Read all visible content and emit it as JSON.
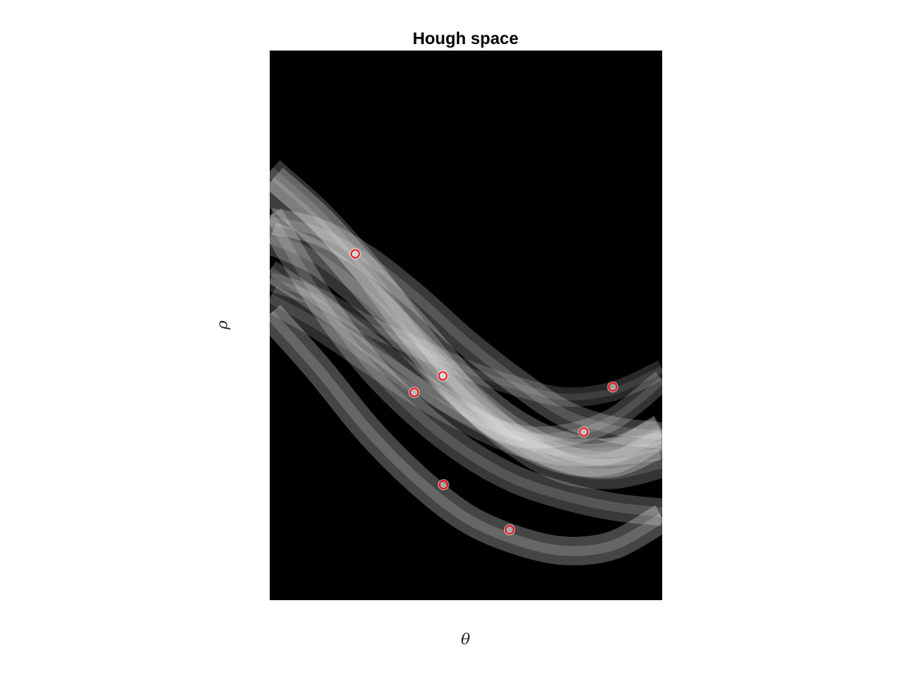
{
  "chart_data": {
    "type": "heatmap",
    "title": "Hough space",
    "xlabel": "θ",
    "ylabel": "ρ",
    "xlim": [
      0,
      1
    ],
    "ylim": [
      0,
      1
    ],
    "colormap": "gray",
    "background_color": "#000000",
    "marker_color": "#ff0000",
    "grid": false,
    "ticks_visible": false,
    "peaks": [
      {
        "x": 0.218,
        "y": 0.63
      },
      {
        "x": 0.441,
        "y": 0.408
      },
      {
        "x": 0.368,
        "y": 0.378
      },
      {
        "x": 0.874,
        "y": 0.388
      },
      {
        "x": 0.8,
        "y": 0.306
      },
      {
        "x": 0.443,
        "y": 0.21
      },
      {
        "x": 0.611,
        "y": 0.128
      }
    ],
    "curves": [
      {
        "y": [
          0.76,
          0.68,
          0.58,
          0.48,
          0.38,
          0.31,
          0.27,
          0.26,
          0.3
        ],
        "width": 0.072,
        "intensity": 0.55
      },
      {
        "y": [
          0.66,
          0.62,
          0.55,
          0.46,
          0.37,
          0.3,
          0.26,
          0.26,
          0.31
        ],
        "width": 0.06,
        "intensity": 0.45
      },
      {
        "y": [
          0.52,
          0.42,
          0.31,
          0.22,
          0.15,
          0.11,
          0.09,
          0.1,
          0.15
        ],
        "width": 0.052,
        "intensity": 0.6
      },
      {
        "y": [
          0.69,
          0.67,
          0.62,
          0.55,
          0.47,
          0.4,
          0.34,
          0.31,
          0.3
        ],
        "width": 0.048,
        "intensity": 0.5
      },
      {
        "y": [
          0.78,
          0.7,
          0.6,
          0.48,
          0.37,
          0.29,
          0.24,
          0.23,
          0.25
        ],
        "width": 0.055,
        "intensity": 0.45
      },
      {
        "y": [
          0.55,
          0.5,
          0.44,
          0.38,
          0.33,
          0.29,
          0.27,
          0.27,
          0.28
        ],
        "width": 0.05,
        "intensity": 0.4
      },
      {
        "y": [
          0.7,
          0.55,
          0.43,
          0.34,
          0.27,
          0.22,
          0.19,
          0.17,
          0.16
        ],
        "width": 0.05,
        "intensity": 0.5
      },
      {
        "y": [
          0.58,
          0.55,
          0.5,
          0.46,
          0.42,
          0.39,
          0.37,
          0.38,
          0.42
        ],
        "width": 0.035,
        "intensity": 0.35
      },
      {
        "y": [
          0.6,
          0.54,
          0.47,
          0.4,
          0.34,
          0.3,
          0.3,
          0.33,
          0.4
        ],
        "width": 0.04,
        "intensity": 0.45
      }
    ]
  }
}
